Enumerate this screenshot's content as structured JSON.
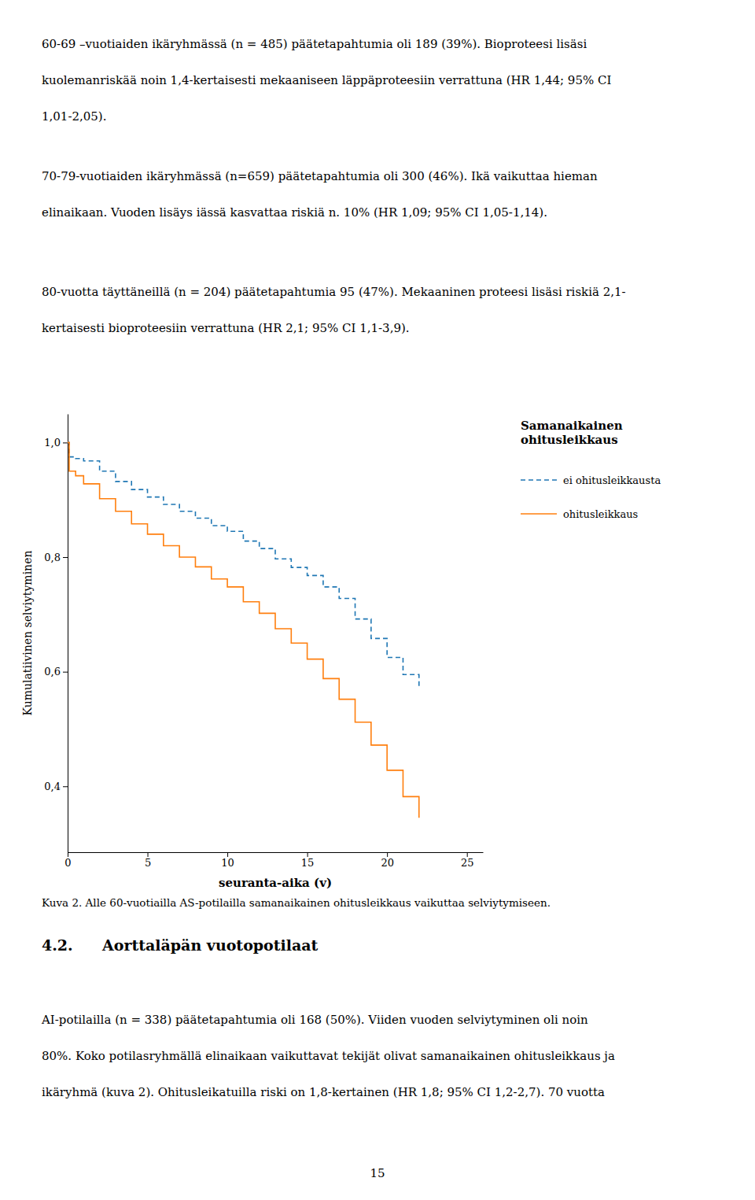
{
  "paragraphs": [
    [
      "60-69 –vuotiaiden ikäryhmässä (n = 485) päätetapahtumia oli 189 (39%). Bioproteesi lisäsi",
      "kuolemanriskää noin 1,4-kertaisesti mekaaniseen läppäproteesiin verrattuna (HR 1,44; 95% CI",
      "1,01-2,05)."
    ],
    [
      "70-79-vuotiaiden ikäryhmässä (n=659) päätetapahtumia oli 300 (46%). Ikä vaikuttaa hieman",
      "elinaikaan. Vuoden lisäys iässä kasvattaa riskiä n. 10% (HR 1,09; 95% CI 1,05-1,14)."
    ],
    [
      "80-vuotta täyttäneillä (n = 204) päätetapahtumia 95 (47%). Mekaaninen proteesi lisäsi riskiä 2,1-",
      "kertaisesti bioproteesiin verrattuna (HR 2,1; 95% CI 1,1-3,9)."
    ]
  ],
  "caption": "Kuva 2. Alle 60-vuotiailla AS-potilailla samanaikainen ohitusleikkaus vaikuttaa selviytymiseen.",
  "section_heading": {
    "number": "4.2.",
    "title": "Aorttaläpän vuotopotilaat"
  },
  "bottom_paragraph": [
    "AI-potilailla (n = 338) päätetapahtumia oli 168 (50%). Viiden vuoden selviytyminen oli noin",
    "80%. Koko potilasryhmällä elinaikaan vaikuttavat tekijät olivat samanaikainen ohitusleikkaus ja",
    "ikäryhmä (kuva 2). Ohitusleikatuilla riski on 1,8-kertainen (HR 1,8; 95% CI 1,2-2,7). 70 vuotta"
  ],
  "page_number": "15",
  "chart_data": {
    "type": "step",
    "xlabel": "seuranta-aika (v)",
    "ylabel": "Kumulatiivinen selviytyminen",
    "legend_title": "Samanaikainen\nohitusleikkaus",
    "legend": "right",
    "grid": false,
    "xlim": [
      0,
      26
    ],
    "ylim": [
      0.285,
      1.05
    ],
    "xticks": [
      0,
      5,
      10,
      15,
      20,
      25
    ],
    "yticks": [
      {
        "value": 0.4,
        "label": "0,4"
      },
      {
        "value": 0.6,
        "label": "0,6"
      },
      {
        "value": 0.8,
        "label": "0,8"
      },
      {
        "value": 1.0,
        "label": "1,0"
      }
    ],
    "x": [
      0,
      0.1,
      0.5,
      1,
      2,
      3,
      4,
      5,
      6,
      7,
      8,
      9,
      10,
      11,
      12,
      13,
      14,
      15,
      16,
      17,
      18,
      19,
      20,
      21,
      22
    ],
    "series": [
      {
        "name": "ei ohitusleikkausta",
        "line_style": "dashed",
        "values": [
          1.0,
          0.975,
          0.972,
          0.968,
          0.95,
          0.932,
          0.918,
          0.905,
          0.892,
          0.88,
          0.868,
          0.855,
          0.845,
          0.828,
          0.815,
          0.797,
          0.782,
          0.768,
          0.748,
          0.728,
          0.692,
          0.658,
          0.625,
          0.595,
          0.57
        ]
      },
      {
        "name": "ohitusleikkaus",
        "line_style": "solid",
        "values": [
          1.0,
          0.95,
          0.942,
          0.928,
          0.902,
          0.88,
          0.858,
          0.84,
          0.82,
          0.8,
          0.783,
          0.762,
          0.748,
          0.722,
          0.702,
          0.675,
          0.65,
          0.622,
          0.588,
          0.552,
          0.512,
          0.472,
          0.428,
          0.382,
          0.345
        ]
      }
    ]
  }
}
